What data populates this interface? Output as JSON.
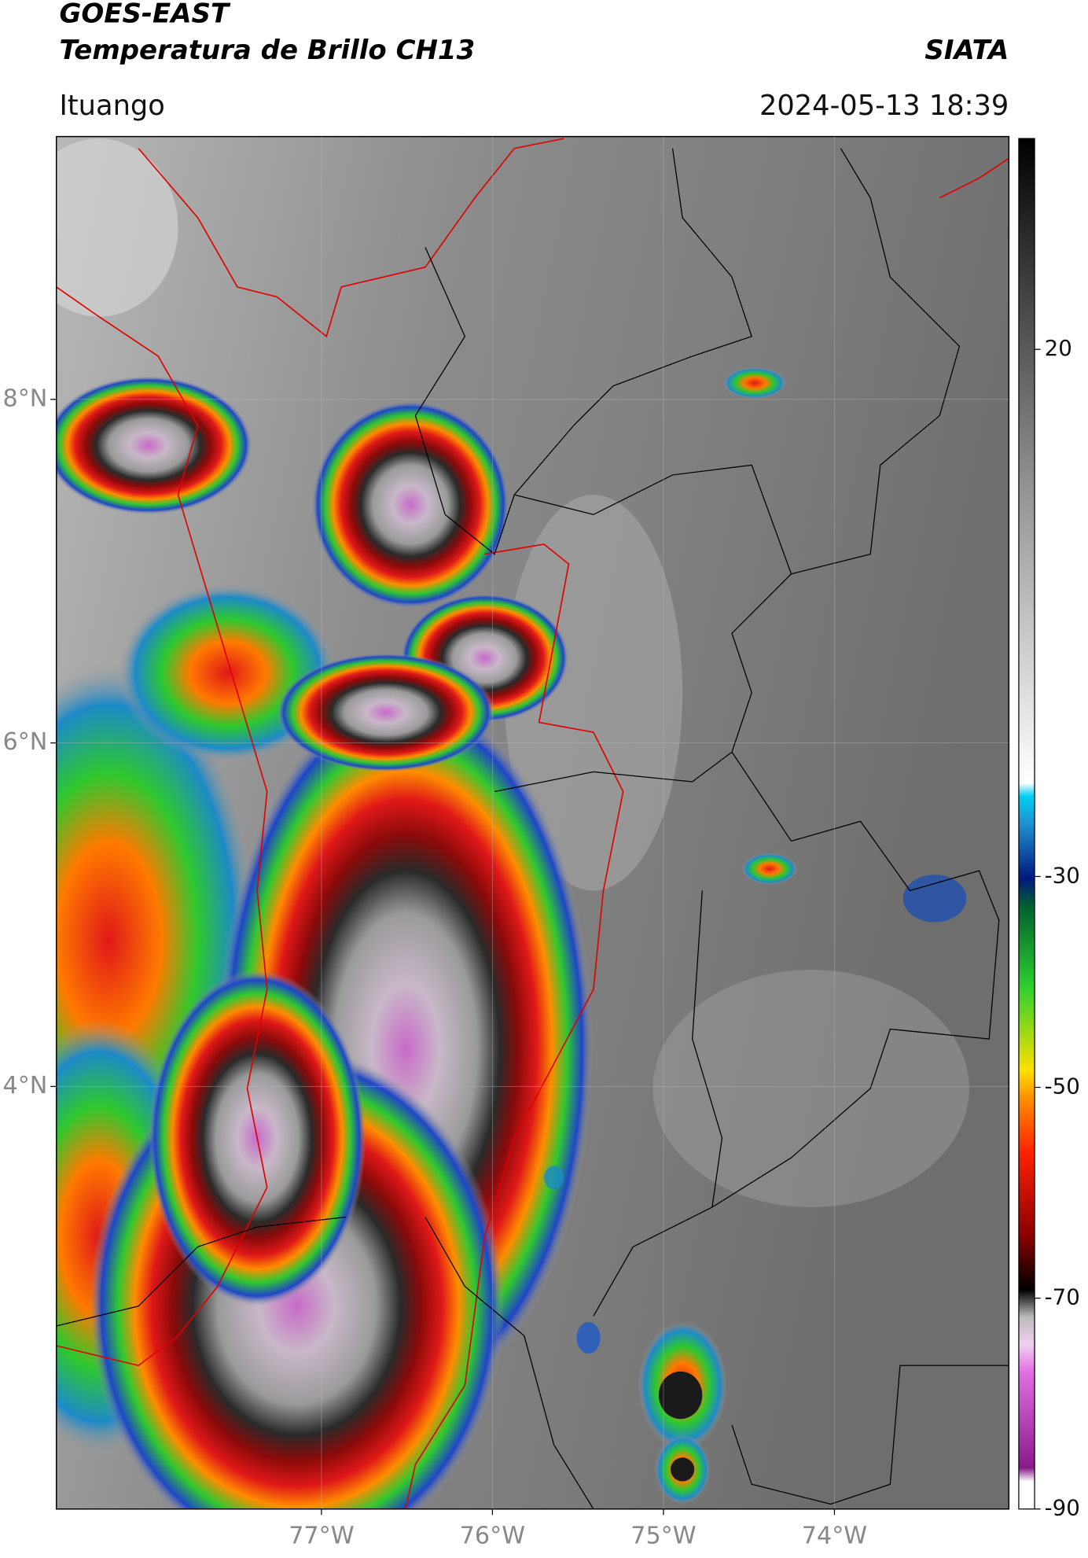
{
  "header": {
    "title": "GOES-EAST",
    "subtitle": "Temperatura de Brillo CH13",
    "source": "SIATA",
    "location": "Ituango",
    "timestamp": "2024-05-13 18:39"
  },
  "map": {
    "lat_range": [
      1.54,
      9.53
    ],
    "lon_range": [
      -78.55,
      -72.98
    ],
    "grid": true,
    "lat_ticks": [
      {
        "value": 8,
        "label": "8°N"
      },
      {
        "value": 6,
        "label": "6°N"
      },
      {
        "value": 4,
        "label": "4°N"
      }
    ],
    "lon_ticks": [
      {
        "value": -77,
        "label": "77°W"
      },
      {
        "value": -76,
        "label": "76°W"
      },
      {
        "value": -75,
        "label": "75°W"
      },
      {
        "value": -74,
        "label": "74°W"
      }
    ]
  },
  "colorbar": {
    "range": [
      -90,
      40
    ],
    "ticks": [
      -90,
      -70,
      -50,
      -30,
      20
    ]
  }
}
